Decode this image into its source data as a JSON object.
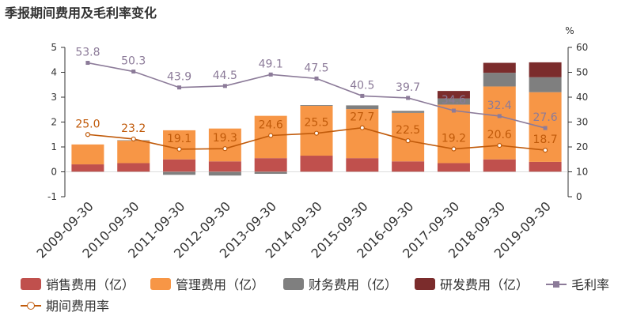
{
  "chart_data": {
    "type": "bar",
    "title": "季报期间费用及毛利率变化",
    "categories": [
      "2009-09-30",
      "2010-09-30",
      "2011-09-30",
      "2012-09-30",
      "2013-09-30",
      "2014-09-30",
      "2015-09-30",
      "2016-09-30",
      "2017-09-30",
      "2018-09-30",
      "2019-09-30"
    ],
    "left_axis": {
      "ylim": [
        -1,
        5
      ],
      "ticks": [
        "-1",
        "0",
        "1",
        "2",
        "3",
        "4",
        "5"
      ]
    },
    "right_axis": {
      "unit": "%",
      "ylim": [
        0,
        60
      ],
      "ticks": [
        "0",
        "10",
        "20",
        "30",
        "40",
        "50",
        "60"
      ]
    },
    "stacked": true,
    "series": [
      {
        "name": "销售费用（亿）",
        "type": "bar",
        "color": "#c0504d",
        "values": [
          0.3,
          0.35,
          0.5,
          0.42,
          0.55,
          0.65,
          0.55,
          0.42,
          0.35,
          0.5,
          0.4
        ]
      },
      {
        "name": "管理费用（亿）",
        "type": "bar",
        "color": "#f79646",
        "values": [
          0.8,
          0.9,
          1.17,
          1.32,
          1.7,
          2.0,
          1.97,
          1.95,
          2.35,
          2.93,
          2.8
        ]
      },
      {
        "name": "财务费用（亿）",
        "type": "bar",
        "color": "#7f7f7f",
        "values": [
          0.0,
          0.02,
          -0.12,
          -0.15,
          -0.08,
          0.03,
          0.15,
          0.08,
          0.25,
          0.55,
          0.6
        ]
      },
      {
        "name": "研发费用（亿）",
        "type": "bar",
        "color": "#7b2c2c",
        "values": [
          0,
          0,
          0,
          0,
          0,
          0,
          0,
          0,
          0.3,
          0.4,
          0.6
        ]
      },
      {
        "name": "毛利率",
        "type": "line",
        "axis": "right",
        "color": "#8c7b99",
        "marker": "square",
        "values": [
          53.8,
          50.3,
          43.9,
          44.5,
          49.1,
          47.5,
          40.5,
          39.7,
          34.6,
          32.4,
          27.6
        ],
        "labels": [
          "53.8",
          "50.3",
          "43.9",
          "44.5",
          "49.1",
          "47.5",
          "40.5",
          "39.7",
          "34.6",
          "32.4",
          "27.6"
        ]
      },
      {
        "name": "期间费用率",
        "type": "line",
        "axis": "right",
        "color": "#c05a0a",
        "marker": "circle",
        "values": [
          25.0,
          23.2,
          19.1,
          19.3,
          24.6,
          25.5,
          27.7,
          22.5,
          19.2,
          20.6,
          18.7
        ],
        "labels": [
          "25.0",
          "23.2",
          "19.1",
          "19.3",
          "24.6",
          "25.5",
          "27.7",
          "22.5",
          "19.2",
          "20.6",
          "18.7"
        ]
      }
    ],
    "legend_position": "bottom",
    "grid": false
  }
}
